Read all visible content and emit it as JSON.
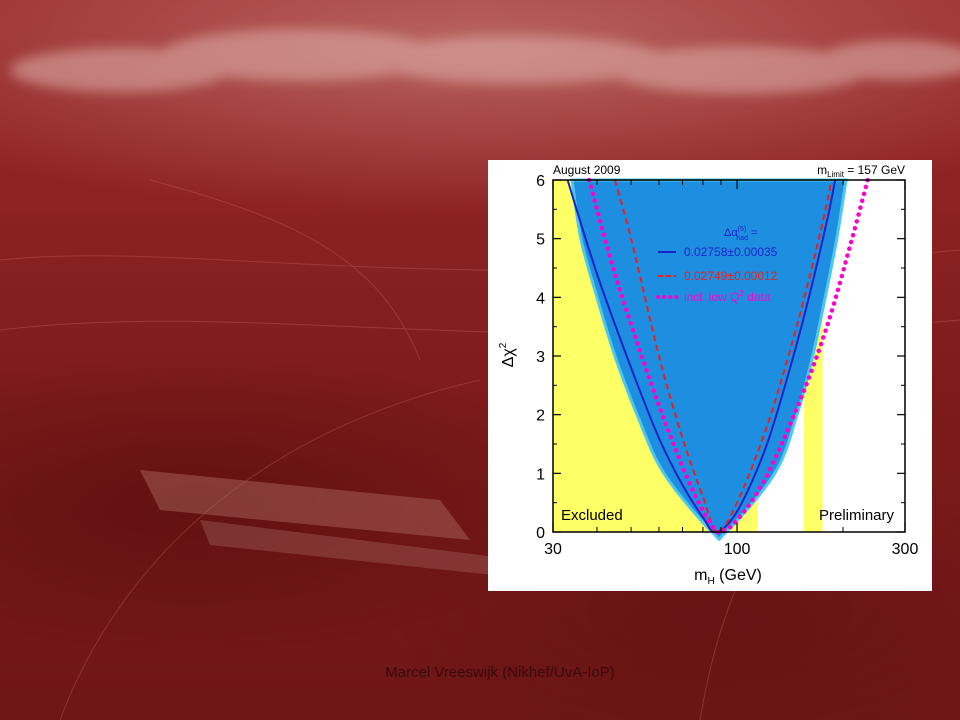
{
  "slide": {
    "footer": "Marcel Vreeswijk (Nikhef/UvA-IoP)",
    "colors": {
      "background": "#8e2323",
      "panel": "#ffffff"
    }
  },
  "chart_data": {
    "type": "line",
    "header_left": "August 2009",
    "header_right": "m",
    "header_right_sub": "Limit",
    "header_right_tail": " = 157 GeV",
    "xlabel": "m",
    "xlabel_sub": "H",
    "xlabel_tail": " (GeV)",
    "ylabel": "Δχ",
    "ylabel_sup": "2",
    "x_scale": "log",
    "xlim": [
      30,
      300
    ],
    "ylim": [
      0,
      6
    ],
    "x_ticks": [
      {
        "value": 30,
        "label": "30"
      },
      {
        "value": 100,
        "label": "100"
      },
      {
        "value": 300,
        "label": "300"
      }
    ],
    "y_ticks": [
      {
        "value": 0,
        "label": "0"
      },
      {
        "value": 1,
        "label": "1"
      },
      {
        "value": 2,
        "label": "2"
      },
      {
        "value": 3,
        "label": "3"
      },
      {
        "value": 4,
        "label": "4"
      },
      {
        "value": 5,
        "label": "5"
      },
      {
        "value": 6,
        "label": "6"
      }
    ],
    "regions": [
      {
        "label": "Excluded",
        "x_from": 30,
        "x_to": 114.4,
        "color": "#ffff66"
      },
      {
        "label": "",
        "x_from": 155,
        "x_to": 175,
        "color": "#ffff66"
      }
    ],
    "preliminary_label": "Preliminary",
    "band": {
      "name": "Theory uncertainty",
      "color": "#1e8fe0",
      "lower_x": [
        {
          "y": 0,
          "x": 85
        },
        {
          "y": 1,
          "x": 62
        },
        {
          "y": 2,
          "x": 52
        },
        {
          "y": 3,
          "x": 45
        },
        {
          "y": 4,
          "x": 40
        },
        {
          "y": 5,
          "x": 36
        },
        {
          "y": 6,
          "x": 34
        }
      ],
      "upper_x": [
        {
          "y": 0,
          "x": 93
        },
        {
          "y": 1,
          "x": 128
        },
        {
          "y": 2,
          "x": 148
        },
        {
          "y": 3,
          "x": 164
        },
        {
          "y": 4,
          "x": 178
        },
        {
          "y": 5,
          "x": 192
        },
        {
          "y": 6,
          "x": 204
        }
      ]
    },
    "legend_heading": "Δα",
    "legend_heading_sup": "(5)",
    "legend_heading_sub": "had",
    "legend_heading_tail": " =",
    "series": [
      {
        "name": "0.02758±0.00035",
        "style": "solid",
        "color": "#1a22c8",
        "min_x": 87,
        "points": [
          {
            "x": 33,
            "y": 6
          },
          {
            "x": 40,
            "y": 4.4
          },
          {
            "x": 50,
            "y": 2.8
          },
          {
            "x": 60,
            "y": 1.6
          },
          {
            "x": 70,
            "y": 0.8
          },
          {
            "x": 80,
            "y": 0.25
          },
          {
            "x": 87,
            "y": 0
          },
          {
            "x": 100,
            "y": 0.35
          },
          {
            "x": 120,
            "y": 1.4
          },
          {
            "x": 140,
            "y": 2.7
          },
          {
            "x": 160,
            "y": 4.0
          },
          {
            "x": 180,
            "y": 5.3
          },
          {
            "x": 190,
            "y": 6
          }
        ]
      },
      {
        "name": "0.02749±0.00012",
        "style": "dashed",
        "color": "#e8201c",
        "min_x": 88,
        "points": [
          {
            "x": 45,
            "y": 6
          },
          {
            "x": 50,
            "y": 5.0
          },
          {
            "x": 60,
            "y": 3.0
          },
          {
            "x": 70,
            "y": 1.6
          },
          {
            "x": 80,
            "y": 0.6
          },
          {
            "x": 88,
            "y": 0
          },
          {
            "x": 100,
            "y": 0.5
          },
          {
            "x": 120,
            "y": 1.7
          },
          {
            "x": 140,
            "y": 3.0
          },
          {
            "x": 160,
            "y": 4.3
          },
          {
            "x": 180,
            "y": 5.6
          },
          {
            "x": 185,
            "y": 6
          }
        ]
      },
      {
        "name": "incl. low Q",
        "name_sup": "2",
        "name_tail": " data",
        "style": "dotted",
        "color": "#ff00cc",
        "min_x": 90,
        "points": [
          {
            "x": 38,
            "y": 6
          },
          {
            "x": 45,
            "y": 4.4
          },
          {
            "x": 55,
            "y": 2.8
          },
          {
            "x": 65,
            "y": 1.6
          },
          {
            "x": 75,
            "y": 0.7
          },
          {
            "x": 85,
            "y": 0.1
          },
          {
            "x": 90,
            "y": 0
          },
          {
            "x": 100,
            "y": 0.2
          },
          {
            "x": 120,
            "y": 0.9
          },
          {
            "x": 150,
            "y": 2.2
          },
          {
            "x": 180,
            "y": 3.5
          },
          {
            "x": 210,
            "y": 4.9
          },
          {
            "x": 235,
            "y": 6
          }
        ]
      }
    ]
  }
}
